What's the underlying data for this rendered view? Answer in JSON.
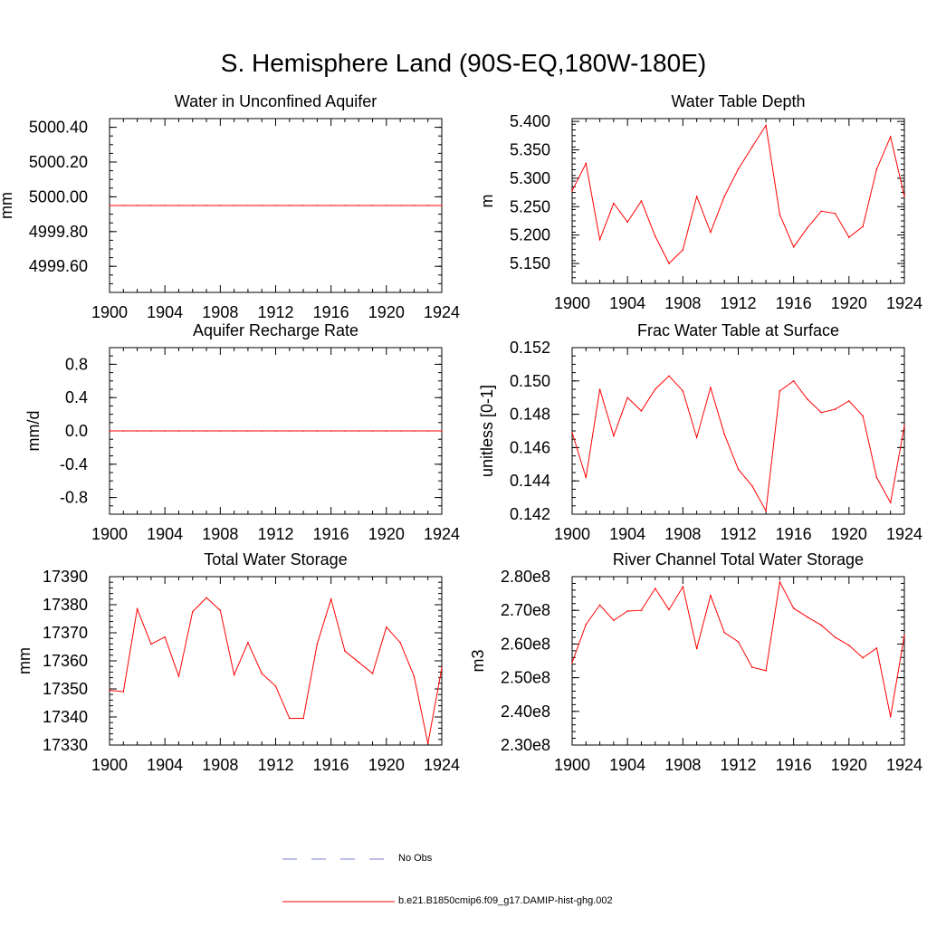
{
  "title": "S. Hemisphere Land (90S-EQ,180W-180E)",
  "legend": [
    {
      "label": "No Obs",
      "color": "#7b7bd6",
      "dash": "dashed"
    },
    {
      "label": "b.e21.B1850cmip6.f09_g17.DAMIP-hist-ghg.002",
      "color": "#ff0000",
      "dash": "solid"
    }
  ],
  "chart_data": [
    {
      "type": "line",
      "title": "Water in Unconfined Aquifer",
      "ylabel": "mm",
      "xlim": [
        1900,
        1924
      ],
      "ylim": [
        4999.45,
        5000.45
      ],
      "xticks": [
        "1900",
        "1904",
        "1908",
        "1912",
        "1916",
        "1920",
        "1924"
      ],
      "yticks": [
        {
          "v": 4999.6,
          "label": "4999.60"
        },
        {
          "v": 4999.8,
          "label": "4999.80"
        },
        {
          "v": 5000.0,
          "label": "5000.00"
        },
        {
          "v": 5000.2,
          "label": "5000.20"
        },
        {
          "v": 5000.4,
          "label": "5000.40"
        }
      ],
      "yminor": 0.05,
      "x": [
        1900,
        1901,
        1902,
        1903,
        1904,
        1905,
        1906,
        1907,
        1908,
        1909,
        1910,
        1911,
        1912,
        1913,
        1914,
        1915,
        1916,
        1917,
        1918,
        1919,
        1920,
        1921,
        1922,
        1923,
        1924
      ],
      "series": [
        {
          "color": "#ff0000",
          "values": [
            4999.95,
            4999.95,
            4999.95,
            4999.95,
            4999.95,
            4999.95,
            4999.95,
            4999.95,
            4999.95,
            4999.95,
            4999.95,
            4999.95,
            4999.95,
            4999.95,
            4999.95,
            4999.95,
            4999.95,
            4999.95,
            4999.95,
            4999.95,
            4999.95,
            4999.95,
            4999.95,
            4999.95,
            4999.95
          ]
        }
      ]
    },
    {
      "type": "line",
      "title": "Water Table Depth",
      "ylabel": "m",
      "xlim": [
        1900,
        1924
      ],
      "ylim": [
        5.115,
        5.405
      ],
      "xticks": [
        "1900",
        "1904",
        "1908",
        "1912",
        "1916",
        "1920",
        "1924"
      ],
      "yticks": [
        {
          "v": 5.15,
          "label": "5.150"
        },
        {
          "v": 5.2,
          "label": "5.200"
        },
        {
          "v": 5.25,
          "label": "5.250"
        },
        {
          "v": 5.3,
          "label": "5.300"
        },
        {
          "v": 5.35,
          "label": "5.350"
        },
        {
          "v": 5.4,
          "label": "5.400"
        }
      ],
      "yminor": 0.01,
      "x": [
        1900,
        1901,
        1902,
        1903,
        1904,
        1905,
        1906,
        1907,
        1908,
        1909,
        1910,
        1911,
        1912,
        1913,
        1914,
        1915,
        1916,
        1917,
        1918,
        1919,
        1920,
        1921,
        1922,
        1923,
        1924
      ],
      "series": [
        {
          "color": "#ff0000",
          "values": [
            5.278,
            5.326,
            5.192,
            5.256,
            5.223,
            5.26,
            5.198,
            5.15,
            5.174,
            5.268,
            5.205,
            5.268,
            5.316,
            5.355,
            5.393,
            5.236,
            5.179,
            5.213,
            5.242,
            5.238,
            5.196,
            5.215,
            5.316,
            5.373,
            5.268
          ]
        }
      ]
    },
    {
      "type": "line",
      "title": "Aquifer Recharge Rate",
      "ylabel": "mm/d",
      "xlim": [
        1900,
        1924
      ],
      "ylim": [
        -1.0,
        1.0
      ],
      "xticks": [
        "1900",
        "1904",
        "1908",
        "1912",
        "1916",
        "1920",
        "1924"
      ],
      "yticks": [
        {
          "v": -0.8,
          "label": "-0.8"
        },
        {
          "v": -0.4,
          "label": "-0.4"
        },
        {
          "v": 0.0,
          "label": "0.0"
        },
        {
          "v": 0.4,
          "label": "0.4"
        },
        {
          "v": 0.8,
          "label": "0.8"
        }
      ],
      "yminor": 0.1,
      "x": [
        1900,
        1901,
        1902,
        1903,
        1904,
        1905,
        1906,
        1907,
        1908,
        1909,
        1910,
        1911,
        1912,
        1913,
        1914,
        1915,
        1916,
        1917,
        1918,
        1919,
        1920,
        1921,
        1922,
        1923,
        1924
      ],
      "series": [
        {
          "color": "#ff0000",
          "values": [
            0,
            0,
            0,
            0,
            0,
            0,
            0,
            0,
            0,
            0,
            0,
            0,
            0,
            0,
            0,
            0,
            0,
            0,
            0,
            0,
            0,
            0,
            0,
            0,
            0
          ]
        }
      ]
    },
    {
      "type": "line",
      "title": "Frac Water Table at Surface",
      "ylabel": "unitless [0-1]",
      "xlim": [
        1900,
        1924
      ],
      "ylim": [
        0.142,
        0.152
      ],
      "xticks": [
        "1900",
        "1904",
        "1908",
        "1912",
        "1916",
        "1920",
        "1924"
      ],
      "yticks": [
        {
          "v": 0.142,
          "label": "0.142"
        },
        {
          "v": 0.144,
          "label": "0.144"
        },
        {
          "v": 0.146,
          "label": "0.146"
        },
        {
          "v": 0.148,
          "label": "0.148"
        },
        {
          "v": 0.15,
          "label": "0.150"
        },
        {
          "v": 0.152,
          "label": "0.152"
        }
      ],
      "yminor": 0.0005,
      "x": [
        1900,
        1901,
        1902,
        1903,
        1904,
        1905,
        1906,
        1907,
        1908,
        1909,
        1910,
        1911,
        1912,
        1913,
        1914,
        1915,
        1916,
        1917,
        1918,
        1919,
        1920,
        1921,
        1922,
        1923,
        1924
      ],
      "series": [
        {
          "color": "#ff0000",
          "values": [
            0.1469,
            0.1442,
            0.1495,
            0.1467,
            0.149,
            0.1482,
            0.1495,
            0.1503,
            0.1494,
            0.1466,
            0.1496,
            0.1468,
            0.1447,
            0.1437,
            0.1422,
            0.1494,
            0.15,
            0.1489,
            0.1481,
            0.1483,
            0.1488,
            0.1479,
            0.1442,
            0.1427,
            0.1473
          ]
        }
      ]
    },
    {
      "type": "line",
      "title": "Total Water Storage",
      "ylabel": "mm",
      "xlim": [
        1900,
        1924
      ],
      "ylim": [
        17330,
        17390
      ],
      "xticks": [
        "1900",
        "1904",
        "1908",
        "1912",
        "1916",
        "1920",
        "1924"
      ],
      "yticks": [
        {
          "v": 17330,
          "label": "17330"
        },
        {
          "v": 17340,
          "label": "17340"
        },
        {
          "v": 17350,
          "label": "17350"
        },
        {
          "v": 17360,
          "label": "17360"
        },
        {
          "v": 17370,
          "label": "17370"
        },
        {
          "v": 17380,
          "label": "17380"
        },
        {
          "v": 17390,
          "label": "17390"
        }
      ],
      "yminor": 2,
      "x": [
        1900,
        1901,
        1902,
        1903,
        1904,
        1905,
        1906,
        1907,
        1908,
        1909,
        1910,
        1911,
        1912,
        1913,
        1914,
        1915,
        1916,
        1917,
        1918,
        1919,
        1920,
        1921,
        1922,
        1923,
        1924
      ],
      "series": [
        {
          "color": "#ff0000",
          "values": [
            17349.5,
            17349,
            17378.5,
            17366,
            17368.5,
            17354.5,
            17377.5,
            17382.5,
            17378,
            17355,
            17366.5,
            17355.5,
            17351,
            17339.5,
            17339.5,
            17366,
            17382,
            17363.5,
            17359.5,
            17355.5,
            17372,
            17366.5,
            17354.5,
            17330.5,
            17357.5
          ]
        }
      ]
    },
    {
      "type": "line",
      "title": "River Channel Total Water Storage",
      "ylabel": "m3",
      "xlim": [
        1900,
        1924
      ],
      "ylim": [
        230000000,
        280000000
      ],
      "xticks": [
        "1900",
        "1904",
        "1908",
        "1912",
        "1916",
        "1920",
        "1924"
      ],
      "yticks": [
        {
          "v": 230000000,
          "label": "2.30e8"
        },
        {
          "v": 240000000,
          "label": "2.40e8"
        },
        {
          "v": 250000000,
          "label": "2.50e8"
        },
        {
          "v": 260000000,
          "label": "2.60e8"
        },
        {
          "v": 270000000,
          "label": "2.70e8"
        },
        {
          "v": 280000000,
          "label": "2.80e8"
        }
      ],
      "yminor": 2000000,
      "x": [
        1900,
        1901,
        1902,
        1903,
        1904,
        1905,
        1906,
        1907,
        1908,
        1909,
        1910,
        1911,
        1912,
        1913,
        1914,
        1915,
        1916,
        1917,
        1918,
        1919,
        1920,
        1921,
        1922,
        1923,
        1924
      ],
      "series": [
        {
          "color": "#ff0000",
          "values": [
            254500000,
            265800000,
            271600000,
            267000000,
            269800000,
            270000000,
            276500000,
            270200000,
            277000000,
            258600000,
            274400000,
            263400000,
            260700000,
            253100000,
            252100000,
            278400000,
            270600000,
            268000000,
            265600000,
            262000000,
            259600000,
            255900000,
            258800000,
            238400000,
            262600000
          ]
        }
      ]
    }
  ]
}
